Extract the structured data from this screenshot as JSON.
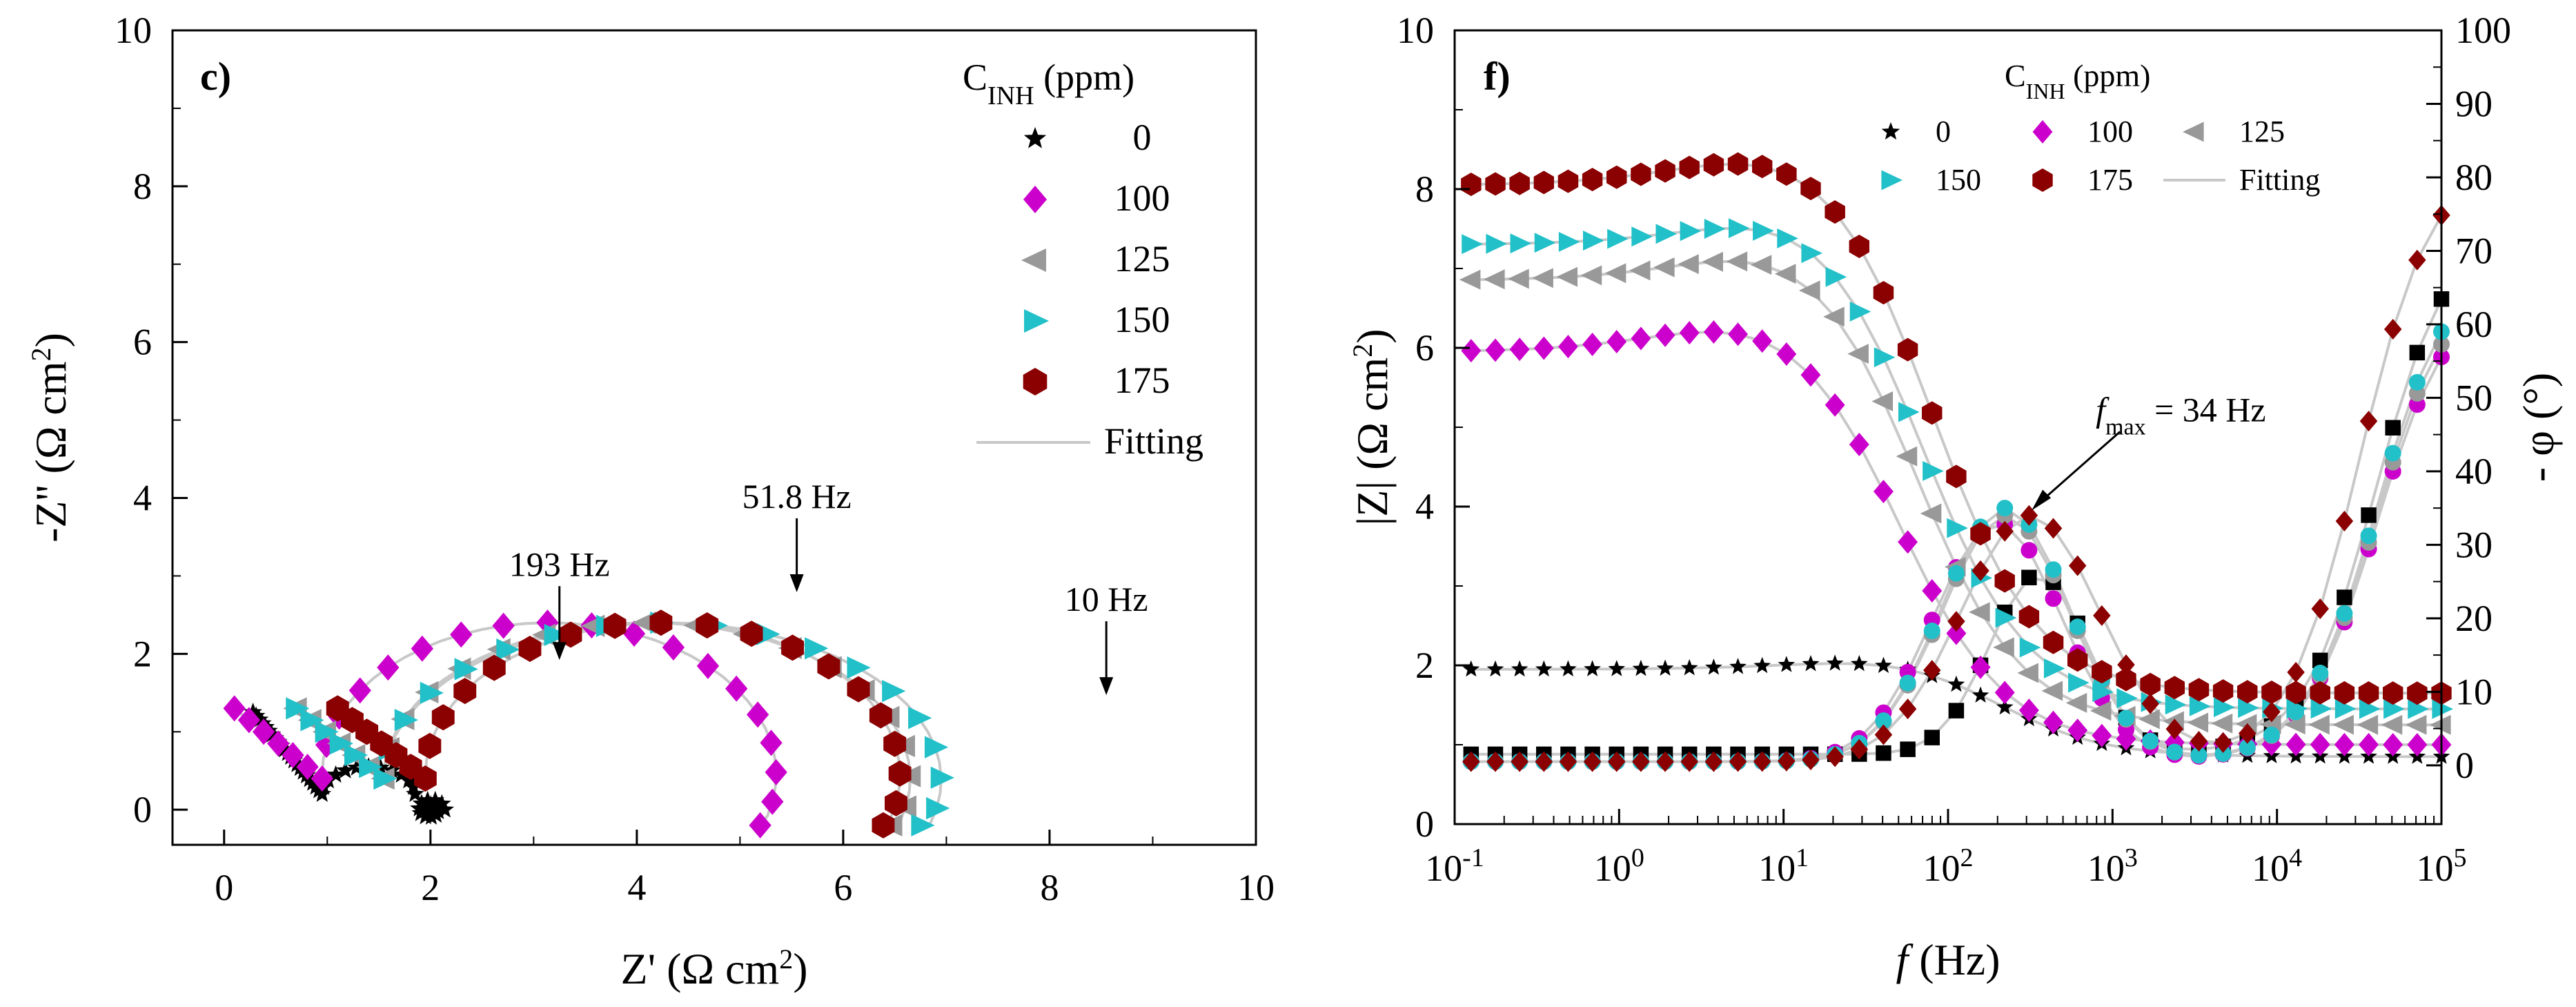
{
  "chart_data": [
    {
      "id": "panel-c",
      "type": "scatter",
      "panel_label": "c)",
      "xlabel": "Z' (Ω cm²)",
      "xlabel_main": "Z' (Ω cm",
      "xlabel_sup": "2",
      "xlabel_close": ")",
      "ylabel": "-Z'' (Ω cm²)",
      "ylabel_main": "-Z'' (Ω cm",
      "ylabel_sup": "2",
      "ylabel_close": ")",
      "xlim": [
        -0.5,
        10
      ],
      "ylim": [
        -0.45,
        10
      ],
      "xticks": [
        0,
        2,
        4,
        6,
        8,
        10
      ],
      "yticks": [
        0,
        2,
        4,
        6,
        8,
        10
      ],
      "legend_title_main": "C",
      "legend_title_sub": "INH",
      "legend_title_unit": " (ppm)",
      "legend_position": "top-right",
      "fit_label": "Fitting",
      "series": [
        {
          "name": "0",
          "marker": "star",
          "color": "#000000",
          "r0": 1.1,
          "re": 0.55,
          "rp": 1.05,
          "cy": 0.47
        },
        {
          "name": "100",
          "marker": "diamond",
          "color": "#cc00cc",
          "r0": 0.95,
          "re": 2.2,
          "rp": 4.0,
          "cy": 1.08
        },
        {
          "name": "125",
          "marker": "triangle-left",
          "color": "#999999",
          "r0": 1.55,
          "re": 2.55,
          "rp": 4.6,
          "cy": 1.1
        },
        {
          "name": "150",
          "marker": "triangle-right",
          "color": "#22c0c8",
          "r0": 1.55,
          "re": 2.7,
          "rp": 4.9,
          "cy": 1.13
        },
        {
          "name": "175",
          "marker": "hexagon",
          "color": "#8b0000",
          "r0": 1.95,
          "re": 2.3,
          "rp": 4.95,
          "cy": 1.15
        }
      ],
      "annotations": [
        {
          "text": "193 Hz",
          "x": 3.25,
          "y": 1.85
        },
        {
          "text": "51.8 Hz",
          "x": 5.55,
          "y": 2.72
        },
        {
          "text": "10 Hz",
          "x": 8.55,
          "y": 1.4
        }
      ]
    },
    {
      "id": "panel-f",
      "type": "scatter",
      "panel_label": "f)",
      "xlabel": "f (Hz)",
      "xlabel_italic": "f",
      "xlabel_rest": " (Hz)",
      "ylabel_left": "|Z| (Ω cm²)",
      "ylabel_left_main": "|Z| (Ω cm",
      "ylabel_left_sup": "2",
      "ylabel_left_close": ")",
      "ylabel_right": "- φ (°)",
      "xscale": "log",
      "xlim_log10": [
        -1,
        5
      ],
      "xtick_base": "10",
      "xtick_exps": [
        "-1",
        "0",
        "1",
        "2",
        "3",
        "4",
        "5"
      ],
      "ylim_left": [
        0,
        10
      ],
      "yticks_left": [
        0,
        2,
        4,
        6,
        8,
        10
      ],
      "ylim_right": [
        -8,
        100
      ],
      "yticks_right": [
        0,
        10,
        20,
        30,
        40,
        50,
        60,
        70,
        80,
        90,
        100
      ],
      "legend_title_main": "C",
      "legend_title_sub": "INH",
      "legend_title_unit": " (ppm)",
      "legend_position": "top",
      "fit_label": "Fitting",
      "series": [
        {
          "name": "0",
          "marker": "star",
          "color": "#000000",
          "z_low": 1.95,
          "z_high": 2.2,
          "z_peak_f": 1.6,
          "z_bump": 0.25,
          "z_hf": 0.85,
          "z_hf_f": 2.3,
          "ph_low": 1.5,
          "ph_peak": 26,
          "ph_peak_f": 2.55,
          "ph_w": 0.42,
          "ph_hf": 80,
          "ph_hf_f": 4.6
        },
        {
          "name": "100",
          "marker": "diamond",
          "color": "#cc00cc",
          "z_low": 5.95,
          "z_high": 6.6,
          "z_peak_f": 0.7,
          "z_bump": 0.65,
          "z_hf": 1.0,
          "z_hf_f": 1.7,
          "ph_low": 0.5,
          "ph_peak": 33,
          "ph_peak_f": 2.3,
          "ph_w": 0.55,
          "ph_hf": 72,
          "ph_hf_f": 4.6
        },
        {
          "name": "125",
          "marker": "triangle-left",
          "color": "#999999",
          "z_low": 6.85,
          "z_high": 7.6,
          "z_peak_f": 0.9,
          "z_bump": 0.75,
          "z_hf": 1.25,
          "z_hf_f": 1.8,
          "ph_low": 0.5,
          "ph_peak": 34,
          "ph_peak_f": 2.35,
          "ph_w": 0.55,
          "ph_hf": 74,
          "ph_hf_f": 4.6
        },
        {
          "name": "150",
          "marker": "triangle-right",
          "color": "#22c0c8",
          "z_low": 7.3,
          "z_high": 8.0,
          "z_peak_f": 0.95,
          "z_bump": 0.7,
          "z_hf": 1.45,
          "z_hf_f": 1.85,
          "ph_low": 0.5,
          "ph_peak": 35,
          "ph_peak_f": 2.35,
          "ph_w": 0.55,
          "ph_hf": 76,
          "ph_hf_f": 4.6
        },
        {
          "name": "175",
          "marker": "hexagon",
          "color": "#8b0000",
          "z_low": 8.05,
          "z_high": 8.75,
          "z_peak_f": 0.85,
          "z_bump": 0.7,
          "z_hf": 1.65,
          "z_hf_f": 1.9,
          "ph_low": 0.5,
          "ph_peak": 34,
          "ph_peak_f": 2.5,
          "ph_w": 0.6,
          "ph_hf": 90,
          "ph_hf_f": 4.5
        }
      ],
      "annotations": [
        {
          "text_italic": "f",
          "text_sub": "max",
          "text_rest": " = 34 Hz",
          "x_log10": 2.5,
          "y": 3.9
        }
      ]
    }
  ]
}
